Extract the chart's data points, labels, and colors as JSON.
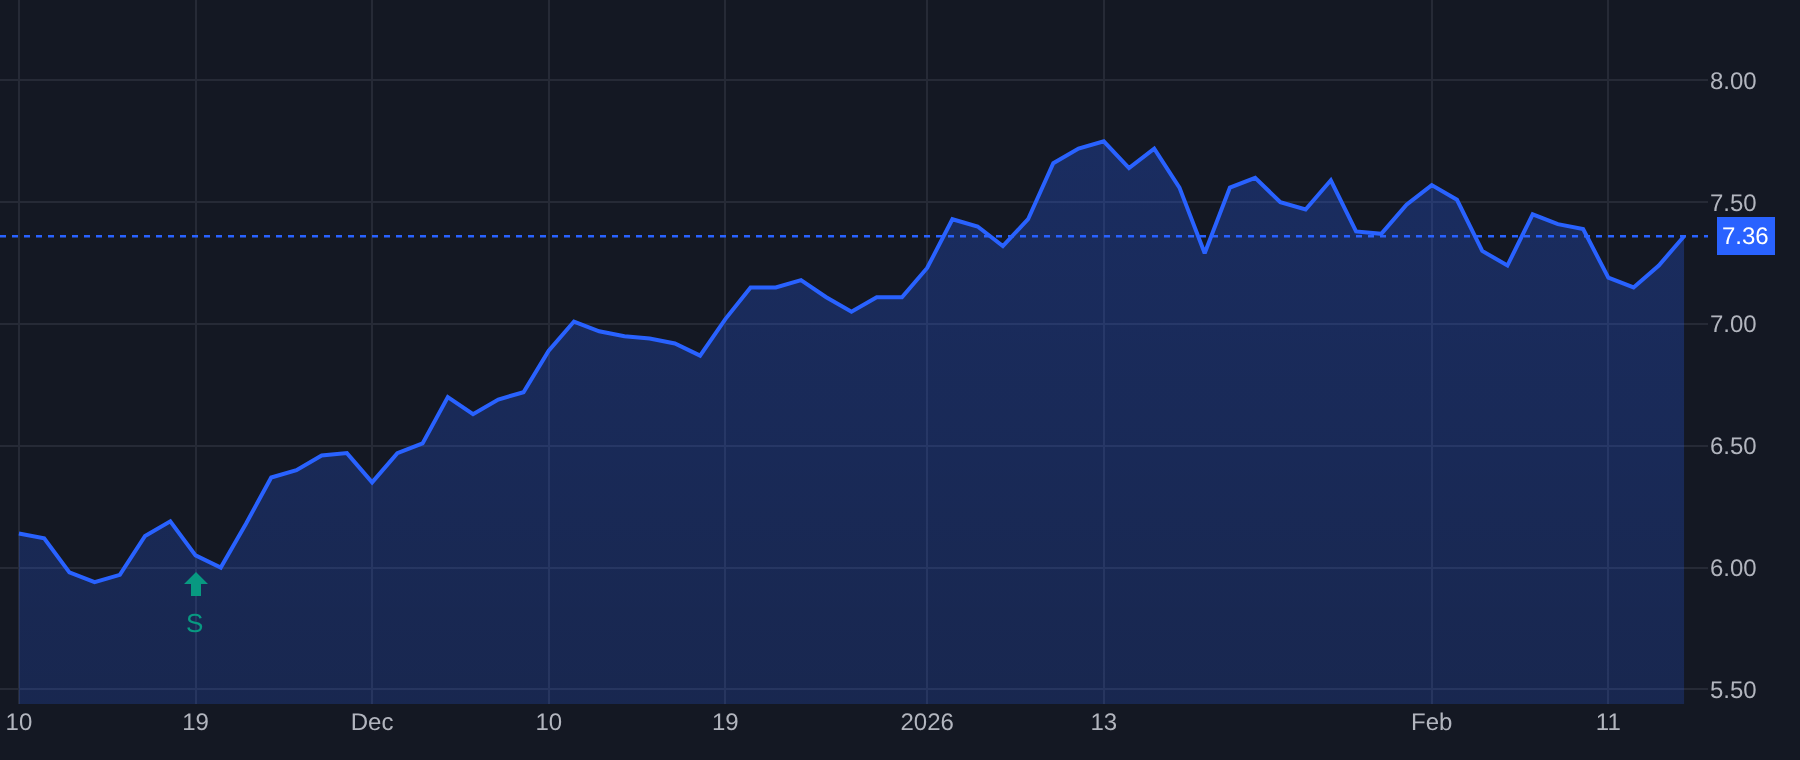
{
  "chart_data": {
    "type": "area",
    "categories": [
      "10",
      null,
      null,
      null,
      null,
      null,
      null,
      "19",
      null,
      null,
      null,
      null,
      null,
      null,
      "Dec",
      null,
      null,
      null,
      null,
      null,
      null,
      "10",
      null,
      null,
      null,
      null,
      null,
      null,
      "19",
      null,
      null,
      null,
      null,
      null,
      null,
      null,
      "2026",
      null,
      null,
      null,
      null,
      null,
      null,
      "13",
      null,
      null,
      null,
      null,
      null,
      null,
      null,
      null,
      null,
      null,
      null,
      null,
      "Feb",
      null,
      null,
      null,
      null,
      null,
      null,
      "11",
      null,
      null,
      null
    ],
    "series": [
      {
        "color": "#2962ff",
        "values": [
          6.14,
          6.12,
          5.98,
          5.94,
          5.97,
          6.13,
          6.19,
          6.05,
          6.0,
          6.18,
          6.37,
          6.4,
          6.46,
          6.47,
          6.35,
          6.47,
          6.51,
          6.7,
          6.63,
          6.69,
          6.72,
          6.89,
          7.01,
          6.97,
          6.95,
          6.94,
          6.92,
          6.87,
          7.02,
          7.15,
          7.15,
          7.18,
          7.11,
          7.05,
          7.11,
          7.11,
          7.23,
          7.43,
          7.4,
          7.32,
          7.43,
          7.66,
          7.72,
          7.75,
          7.64,
          7.72,
          7.56,
          7.29,
          7.56,
          7.6,
          7.5,
          7.47,
          7.59,
          7.38,
          7.37,
          7.49,
          7.57,
          7.51,
          7.3,
          7.24,
          7.45,
          7.41,
          7.39,
          7.19,
          7.15,
          7.24,
          7.36
        ]
      }
    ],
    "ylim": [
      5.44,
      8.33
    ],
    "yticks": [
      {
        "value": 5.5,
        "label": "5.50"
      },
      {
        "value": 6,
        "label": "6.00"
      },
      {
        "value": 6.5,
        "label": "6.50"
      },
      {
        "value": 7,
        "label": "7.00"
      },
      {
        "value": 7.5,
        "label": "7.50"
      },
      {
        "value": 8,
        "label": "8.00"
      }
    ],
    "grid": true,
    "line_style": "solid",
    "marker": "none",
    "ref_lines": [
      {
        "axis": "y",
        "value": 7.36,
        "label": "7.36",
        "color": "#2962ff",
        "line_style": "dotted"
      }
    ],
    "annotations": [
      {
        "text": "S",
        "x": "19",
        "y": 6.05
      }
    ]
  }
}
